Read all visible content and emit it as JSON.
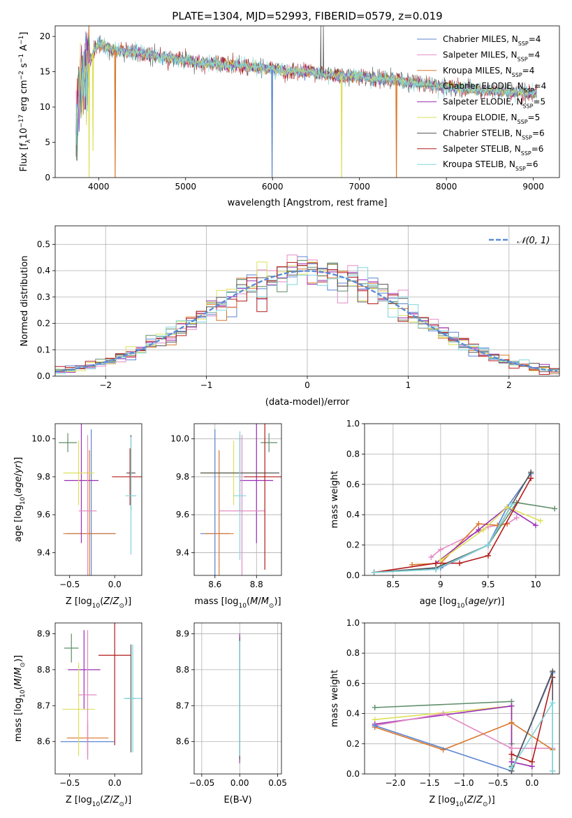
{
  "colors": {
    "Chabrier MILES": "#5b84d1",
    "Salpeter MILES": "#e28bc3",
    "Kroupa MILES": "#d9772a",
    "Chabrier ELODIE": "#5f8e6a",
    "Salpeter ELODIE": "#9b2fb3",
    "Kroupa ELODIE": "#dde05a",
    "Chabrier STELIB": "#555555",
    "Salpeter STELIB": "#b31b1b",
    "Kroupa STELIB": "#7fd5da",
    "gauss": "#5b8cd6",
    "grid": "#b0b0b0"
  },
  "chart_data": [
    {
      "id": "spectrum",
      "type": "line",
      "title": "PLATE=1304, MJD=52993, FIBERID=0579, z=0.019",
      "xlabel": "wavelength [Angstrom, rest frame]",
      "ylabel": "Flux [fλ10⁻¹⁷ erg cm⁻² s⁻¹ A⁻¹]",
      "xlim": [
        3500,
        9300
      ],
      "ylim": [
        0,
        21.5
      ],
      "xticks": [
        4000,
        5000,
        6000,
        7000,
        8000,
        9000
      ],
      "yticks": [
        0,
        5,
        10,
        15,
        20
      ],
      "grid": false,
      "legend_position": "upper right",
      "legend": [
        {
          "label": "Chabrier MILES, N",
          "sub": "SSP",
          "tail": "=4"
        },
        {
          "label": "Salpeter MILES, N",
          "sub": "SSP",
          "tail": "=4"
        },
        {
          "label": "Kroupa MILES, N",
          "sub": "SSP",
          "tail": "=4"
        },
        {
          "label": "Chabrier ELODIE, N",
          "sub": "SSP",
          "tail": "=4"
        },
        {
          "label": "Salpeter ELODIE, N",
          "sub": "SSP",
          "tail": "=5"
        },
        {
          "label": "Kroupa ELODIE, N",
          "sub": "SSP",
          "tail": "=5"
        },
        {
          "label": "Chabrier STELIB, N",
          "sub": "SSP",
          "tail": "=6"
        },
        {
          "label": "Salpeter STELIB, N",
          "sub": "SSP",
          "tail": "=6"
        },
        {
          "label": "Kroupa STELIB, N",
          "sub": "SSP",
          "tail": "=6"
        }
      ],
      "continuum_knots": {
        "wavelength": [
          3740,
          3780,
          3850,
          3900,
          3950,
          4000,
          4100,
          4200,
          4400,
          4600,
          4800,
          5000,
          5200,
          5500,
          5800,
          6000,
          6300,
          6500,
          6700,
          7000,
          7200,
          7400,
          7600,
          7800,
          8000,
          8200,
          8400,
          8600,
          8800,
          9000,
          9040
        ],
        "flux": [
          8,
          12,
          15,
          16.5,
          18,
          19,
          18.5,
          18,
          17.8,
          17.3,
          17,
          16.5,
          16.2,
          16,
          15.6,
          15.3,
          15,
          14.9,
          14.5,
          14.3,
          14,
          13.8,
          13.5,
          13.2,
          12.9,
          12.6,
          12.4,
          12.2,
          12.1,
          12,
          11.8
        ]
      },
      "spikes_down": [
        {
          "wavelength": 3890,
          "flux": 0,
          "series": "Kroupa ELODIE"
        },
        {
          "wavelength": 3935,
          "flux": 3.8,
          "series": "Kroupa ELODIE"
        },
        {
          "wavelength": 4190,
          "flux": 0,
          "series": "Kroupa MILES"
        },
        {
          "wavelength": 5995,
          "flux": 0,
          "series": "Chabrier MILES"
        },
        {
          "wavelength": 6795,
          "flux": 0,
          "series": "Kroupa ELODIE"
        },
        {
          "wavelength": 7425,
          "flux": 0,
          "series": "Kroupa MILES"
        }
      ],
      "spikes_up": [
        {
          "wavelength": 6555,
          "flux": 21.5,
          "series": "Chabrier STELIB"
        },
        {
          "wavelength": 6585,
          "flux": 21.5,
          "series": "Chabrier STELIB"
        }
      ]
    },
    {
      "id": "residuals",
      "type": "line",
      "xlabel": "(data-model)/error",
      "ylabel": "Normed distribution",
      "xlim": [
        -2.5,
        2.5
      ],
      "ylim": [
        0,
        0.57
      ],
      "xticks": [
        -2,
        -1,
        0,
        1,
        2
      ],
      "xticklabels": [
        "−2",
        "−1",
        "0",
        "1",
        "2"
      ],
      "yticks": [
        0.0,
        0.1,
        0.2,
        0.3,
        0.4,
        0.5
      ],
      "grid": true,
      "legend_position": "upper right",
      "legend": "𝒩(0, 1)",
      "histogram_bin_width": 0.1,
      "histogram_range": [
        -2.5,
        2.5
      ],
      "gaussian": {
        "mu": 0,
        "sigma": 1
      }
    },
    {
      "id": "age-vs-Z",
      "type": "scatter",
      "xlabel": "Z [log₁₀(Z/Z⊙)]",
      "ylabel": "age  [log₁₀(age/yr)]",
      "xlim": [
        -0.66,
        0.3
      ],
      "ylim": [
        9.28,
        10.08
      ],
      "xticks": [
        -0.5,
        0.0
      ],
      "xticklabels": [
        "−0.5",
        "0.0"
      ],
      "yticks": [
        9.4,
        9.6,
        9.8,
        10.0
      ],
      "grid": false,
      "points": [
        {
          "series": "Chabrier STELIB",
          "x": 0.18,
          "xerr": 0.05,
          "y": 9.82,
          "yerr": 0.2
        },
        {
          "series": "Salpeter STELIB",
          "x": 0.17,
          "xerr": 0.2,
          "y": 9.8,
          "yerr": 0.15
        },
        {
          "series": "Kroupa STELIB",
          "x": 0.18,
          "xerr": 0.06,
          "y": 9.7,
          "yerr": 0.31
        },
        {
          "series": "Chabrier MILES",
          "x": -0.26,
          "xerr": 0.27,
          "y": 9.5,
          "yerr": 0.55
        },
        {
          "series": "Kroupa MILES",
          "x": -0.28,
          "xerr": 0.29,
          "y": 9.5,
          "yerr": 0.44
        },
        {
          "series": "Chabrier ELODIE",
          "x": -0.52,
          "xerr": 0.1,
          "y": 9.98,
          "yerr": 0.05
        },
        {
          "series": "Salpeter ELODIE",
          "x": -0.37,
          "xerr": 0.19,
          "y": 9.78,
          "yerr": 0.33
        },
        {
          "series": "Kroupa ELODIE",
          "x": -0.4,
          "xerr": 0.17,
          "y": 9.82,
          "yerr": 0.17
        },
        {
          "series": "Salpeter MILES",
          "x": -0.3,
          "xerr": 0.1,
          "y": 9.62,
          "yerr": 0.4
        }
      ]
    },
    {
      "id": "age-vs-mass",
      "type": "scatter",
      "xlabel": "mass [log₁₀(M/M⊙)]",
      "ylabel": "",
      "xlim": [
        8.5,
        8.92
      ],
      "ylim": [
        9.28,
        10.08
      ],
      "xticks": [
        8.6,
        8.8
      ],
      "yticks": [
        9.4,
        9.6,
        9.8,
        10.0
      ],
      "grid": true,
      "points": [
        {
          "series": "Chabrier MILES",
          "x": 8.6,
          "xerr": 0.07,
          "y": 9.5,
          "yerr": 0.55
        },
        {
          "series": "Kroupa MILES",
          "x": 8.62,
          "xerr": 0.07,
          "y": 9.5,
          "yerr": 0.44
        },
        {
          "series": "Chabrier ELODIE",
          "x": 8.86,
          "xerr": 0.04,
          "y": 9.98,
          "yerr": 0.05
        },
        {
          "series": "Salpeter ELODIE",
          "x": 8.8,
          "xerr": 0.08,
          "y": 9.78,
          "yerr": 0.33
        },
        {
          "series": "Kroupa ELODIE",
          "x": 8.69,
          "xerr": 0.16,
          "y": 9.82,
          "yerr": 0.17
        },
        {
          "series": "Salpeter MILES",
          "x": 8.73,
          "xerr": 0.11,
          "y": 9.62,
          "yerr": 0.4
        },
        {
          "series": "Chabrier STELIB",
          "x": 8.72,
          "xerr": 0.19,
          "y": 9.82,
          "yerr": 0.2
        },
        {
          "series": "Salpeter STELIB",
          "x": 8.84,
          "xerr": 0.1,
          "y": 9.8,
          "yerr": 0.49
        },
        {
          "series": "Kroupa STELIB",
          "x": 8.72,
          "xerr": 0.03,
          "y": 9.7,
          "yerr": 0.34
        }
      ]
    },
    {
      "id": "weight-vs-age",
      "type": "line",
      "xlabel": "age  [log₁₀(age/yr)]",
      "ylabel": "mass weight",
      "xlim": [
        8.2,
        10.25
      ],
      "ylim": [
        0,
        1.0
      ],
      "xticks": [
        8.5,
        9.0,
        9.5,
        10.0
      ],
      "yticks": [
        0.0,
        0.2,
        0.4,
        0.6,
        0.8,
        1.0
      ],
      "grid": true,
      "series": [
        {
          "name": "Chabrier MILES",
          "x": [
            8.3,
            9.0,
            9.5,
            9.7,
            9.95
          ],
          "y": [
            0.02,
            0.05,
            0.2,
            0.45,
            0.67
          ]
        },
        {
          "name": "Salpeter MILES",
          "x": [
            8.9,
            9.0,
            9.5,
            9.7,
            9.8
          ],
          "y": [
            0.12,
            0.17,
            0.32,
            0.34,
            0.38
          ]
        },
        {
          "name": "Kroupa MILES",
          "x": [
            8.7,
            9.0,
            9.4,
            9.6,
            9.7
          ],
          "y": [
            0.07,
            0.08,
            0.34,
            0.33,
            0.34
          ]
        },
        {
          "name": "Chabrier ELODIE",
          "x": [
            8.3,
            8.95,
            9.5,
            9.8,
            10.2
          ],
          "y": [
            0.02,
            0.04,
            0.2,
            0.48,
            0.44
          ]
        },
        {
          "name": "Salpeter ELODIE",
          "x": [
            8.95,
            9.4,
            9.7,
            10.0
          ],
          "y": [
            0.08,
            0.3,
            0.45,
            0.33
          ]
        },
        {
          "name": "Kroupa ELODIE",
          "x": [
            9.0,
            9.45,
            9.7,
            10.05
          ],
          "y": [
            0.1,
            0.3,
            0.45,
            0.36
          ]
        },
        {
          "name": "Chabrier STELIB",
          "x": [
            8.3,
            8.95,
            9.5,
            9.95
          ],
          "y": [
            0.02,
            0.05,
            0.2,
            0.68
          ]
        },
        {
          "name": "Salpeter STELIB",
          "x": [
            8.3,
            8.95,
            9.2,
            9.5,
            9.95
          ],
          "y": [
            0.02,
            0.08,
            0.08,
            0.13,
            0.64
          ]
        },
        {
          "name": "Kroupa STELIB",
          "x": [
            8.3,
            8.95,
            9.5,
            9.75
          ],
          "y": [
            0.02,
            0.04,
            0.2,
            0.47
          ]
        }
      ]
    },
    {
      "id": "mass-vs-Z",
      "type": "scatter",
      "xlabel": "Z [log₁₀(Z/Z⊙)]",
      "ylabel": "mass [log₁₀(M/M⊙)]",
      "xlim": [
        -0.66,
        0.3
      ],
      "ylim": [
        8.51,
        8.93
      ],
      "xticks": [
        -0.5,
        0.0
      ],
      "xticklabels": [
        "−0.5",
        "0.0"
      ],
      "yticks": [
        8.6,
        8.7,
        8.8,
        8.9
      ],
      "grid": false,
      "points": [
        {
          "series": "Chabrier STELIB",
          "x": 0.18,
          "xerr": 0.05,
          "y": 8.72,
          "yerr": 0.15
        },
        {
          "series": "Kroupa STELIB",
          "x": 0.2,
          "xerr": 0.1,
          "y": 8.72,
          "yerr": 0.15
        },
        {
          "series": "Salpeter STELIB",
          "x": 0.0,
          "xerr": 0.18,
          "y": 8.84,
          "yerr": 0.25
        },
        {
          "series": "Chabrier MILES",
          "x": -0.3,
          "xerr": 0.3,
          "y": 8.6,
          "yerr": 0.05
        },
        {
          "series": "Kroupa MILES",
          "x": -0.3,
          "xerr": 0.23,
          "y": 8.61,
          "yerr": 0.05
        },
        {
          "series": "Chabrier ELODIE",
          "x": -0.48,
          "xerr": 0.08,
          "y": 8.86,
          "yerr": 0.04
        },
        {
          "series": "Salpeter ELODIE",
          "x": -0.34,
          "xerr": 0.18,
          "y": 8.8,
          "yerr": 0.11
        },
        {
          "series": "Kroupa ELODIE",
          "x": -0.4,
          "xerr": 0.18,
          "y": 8.69,
          "yerr": 0.13
        },
        {
          "series": "Salpeter MILES",
          "x": -0.3,
          "xerr": 0.1,
          "y": 8.73,
          "yerr": 0.18
        }
      ]
    },
    {
      "id": "mass-vs-EBV",
      "type": "scatter",
      "xlabel": "E(B-V)",
      "ylabel": "",
      "xlim": [
        -0.06,
        0.055
      ],
      "ylim": [
        8.51,
        8.93
      ],
      "xticks": [
        -0.05,
        0.0,
        0.05
      ],
      "xticklabels": [
        "−0.05",
        "0.00",
        "0.05"
      ],
      "yticks": [
        8.6,
        8.7,
        8.8,
        8.9
      ],
      "grid": true,
      "points": [
        {
          "series": "Salpeter ELODIE",
          "x": 0.0,
          "xerr": 0.0,
          "y": 8.72,
          "yerr": 0.18
        },
        {
          "series": "Chabrier STELIB",
          "x": 0.0,
          "xerr": 0.0,
          "y": 8.72,
          "yerr": 0.17
        },
        {
          "series": "Kroupa STELIB",
          "x": 0.0,
          "xerr": 0.0,
          "y": 8.72,
          "yerr": 0.16
        }
      ]
    },
    {
      "id": "weight-vs-Z",
      "type": "line",
      "xlabel": "Z [log₁₀(Z/Z⊙)]",
      "ylabel": "mass weight",
      "xlim": [
        -2.45,
        0.4
      ],
      "ylim": [
        0,
        1.0
      ],
      "xticks": [
        -2.0,
        -1.5,
        -1.0,
        -0.5,
        0.0
      ],
      "xticklabels": [
        "−2.0",
        "−1.5",
        "−1.0",
        "−0.5",
        "0.0"
      ],
      "yticks": [
        0.0,
        0.2,
        0.4,
        0.6,
        0.8,
        1.0
      ],
      "grid": true,
      "series": [
        {
          "name": "Chabrier ELODIE",
          "x": [
            -2.3,
            -0.3,
            -0.3,
            -0.3,
            -0.3
          ],
          "y": [
            0.44,
            0.48,
            0.2,
            0.04,
            0.02
          ]
        },
        {
          "name": "Kroupa ELODIE",
          "x": [
            -2.3,
            -0.3,
            -0.3
          ],
          "y": [
            0.36,
            0.45,
            0.1
          ]
        },
        {
          "name": "Salpeter ELODIE",
          "x": [
            -2.3,
            -0.3,
            -0.3,
            0.0
          ],
          "y": [
            0.33,
            0.45,
            0.08,
            0.05
          ]
        },
        {
          "name": "Salpeter MILES",
          "x": [
            -2.3,
            -1.3,
            -0.3,
            0.3
          ],
          "y": [
            0.32,
            0.4,
            0.17,
            0.17
          ]
        },
        {
          "name": "Kroupa MILES",
          "x": [
            -2.3,
            -1.3,
            -0.3,
            0.3
          ],
          "y": [
            0.31,
            0.16,
            0.34,
            0.16
          ]
        },
        {
          "name": "Chabrier MILES",
          "x": [
            -2.3,
            -0.3,
            0.3
          ],
          "y": [
            0.32,
            0.02,
            0.67
          ]
        },
        {
          "name": "Salpeter STELIB",
          "x": [
            -0.3,
            0.0,
            0.3
          ],
          "y": [
            0.13,
            0.08,
            0.64
          ]
        },
        {
          "name": "Chabrier STELIB",
          "x": [
            -0.3,
            -0.3,
            0.3,
            0.3
          ],
          "y": [
            0.05,
            0.02,
            0.68,
            0.02
          ]
        },
        {
          "name": "Kroupa STELIB",
          "x": [
            -0.3,
            0.3,
            0.3
          ],
          "y": [
            0.04,
            0.47,
            0.02
          ]
        }
      ]
    }
  ]
}
